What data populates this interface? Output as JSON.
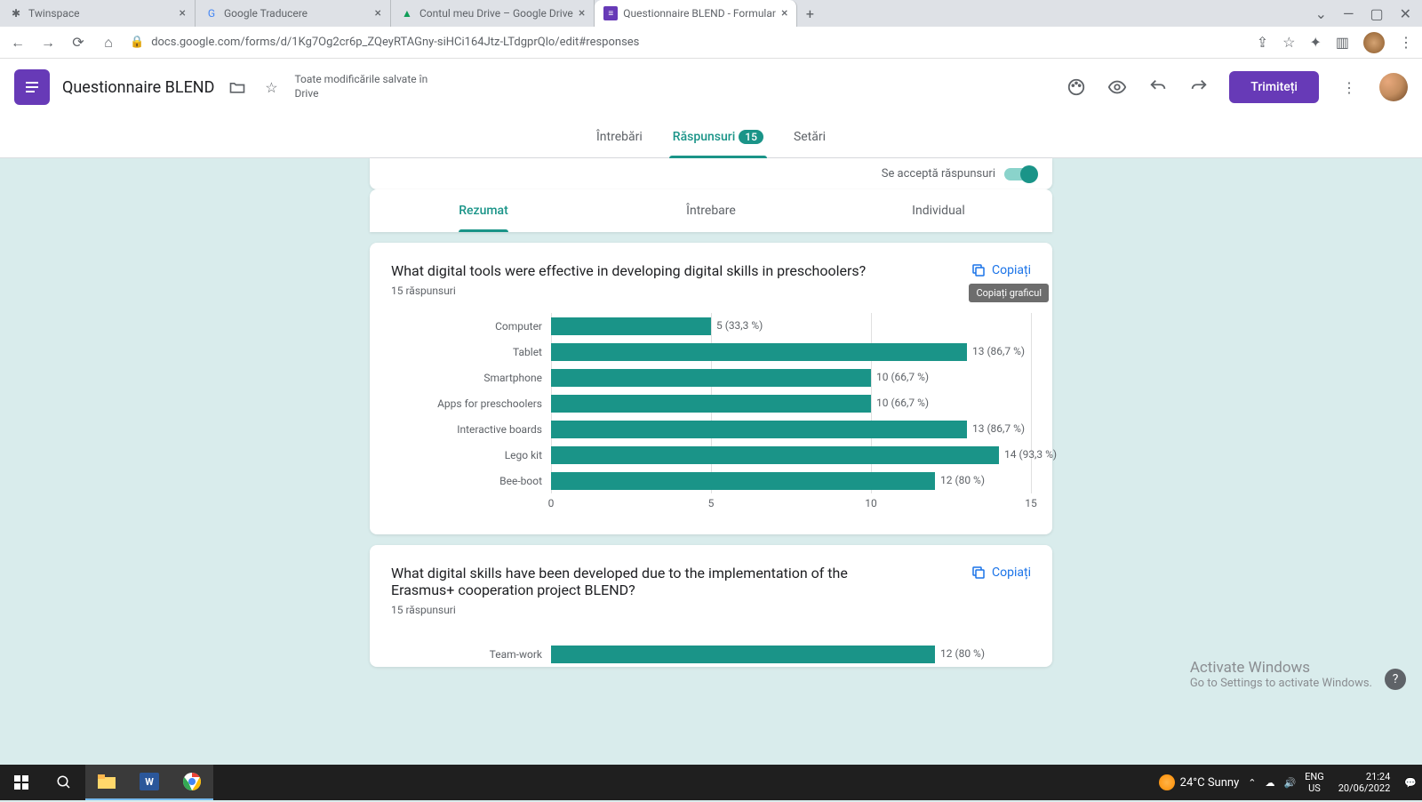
{
  "browser": {
    "tabs": [
      {
        "title": "Twinspace",
        "favicon": "✱"
      },
      {
        "title": "Google Traducere",
        "favicon": "G"
      },
      {
        "title": "Contul meu Drive – Google Drive",
        "favicon": "▲"
      },
      {
        "title": "Questionnaire BLEND - Formular",
        "favicon": "≡",
        "active": true
      }
    ],
    "url": "docs.google.com/forms/d/1Kg7Og2cr6p_ZQeyRTAGny-siHCi164Jtz-LTdgprQlo/edit#responses"
  },
  "header": {
    "doc_title": "Questionnaire BLEND",
    "save_status_l1": "Toate modificările salvate în",
    "save_status_l2": "Drive",
    "send_label": "Trimiteți"
  },
  "main_tabs": {
    "questions": "Întrebări",
    "responses": "Răspunsuri",
    "responses_count": "15",
    "settings": "Setări"
  },
  "accept_label": "Se acceptă răspunsuri",
  "sub_tabs": {
    "summary": "Rezumat",
    "question": "Întrebare",
    "individual": "Individual"
  },
  "copy_label": "Copiați",
  "tooltip_text": "Copiați graficul",
  "card1": {
    "title": "What digital tools were effective in developing digital skills in preschoolers?",
    "count": "15 răspunsuri",
    "chart": {
      "type": "bar",
      "max": 15,
      "bar_color": "#1a9488",
      "grid_color": "#e0e0e0",
      "label_color": "#5f6368",
      "label_fontsize": 12,
      "axis_ticks": [
        0,
        5,
        10,
        15
      ],
      "rows": [
        {
          "label": "Computer",
          "value": 5,
          "text": "5 (33,3 %)"
        },
        {
          "label": "Tablet",
          "value": 13,
          "text": "13 (86,7 %)"
        },
        {
          "label": "Smartphone",
          "value": 10,
          "text": "10 (66,7 %)"
        },
        {
          "label": "Apps for preschoolers",
          "value": 10,
          "text": "10 (66,7 %)"
        },
        {
          "label": "Interactive boards",
          "value": 13,
          "text": "13 (86,7 %)"
        },
        {
          "label": "Lego kit",
          "value": 14,
          "text": "14 (93,3 %)"
        },
        {
          "label": "Bee-boot",
          "value": 12,
          "text": "12 (80 %)"
        }
      ]
    }
  },
  "card2": {
    "title": "What digital skills have been developed due to the implementation of the Erasmus+ cooperation project BLEND?",
    "count": "15 răspunsuri",
    "chart": {
      "type": "bar",
      "max": 15,
      "bar_color": "#1a9488",
      "rows": [
        {
          "label": "Team-work",
          "value": 12,
          "text": "12 (80 %)"
        }
      ]
    }
  },
  "activate": {
    "t1": "Activate Windows",
    "t2": "Go to Settings to activate Windows."
  },
  "taskbar": {
    "weather": "24°C Sunny",
    "lang1": "ENG",
    "lang2": "US",
    "time": "21:24",
    "date": "20/06/2022"
  }
}
